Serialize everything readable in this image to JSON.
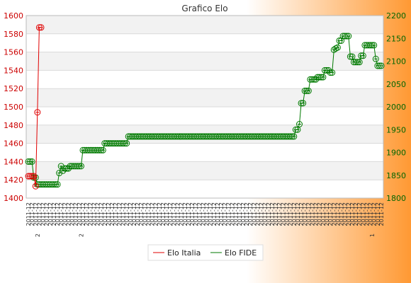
{
  "colors": {
    "bg_left": "#ffffff",
    "bg_right": "#ff9933",
    "band_light": "#f2f2f2",
    "band_white": "#ffffff",
    "grid": "#d9d9d9",
    "italia": "#e00000",
    "fide": "#007a00",
    "left_tick": "#cc0000",
    "right_tick": "#006600",
    "title": "#333333",
    "x_tick": "#333333"
  },
  "chart_data": {
    "type": "line",
    "title": "Grafico Elo",
    "xlabel": "",
    "grid": true,
    "legend_position": "bottom-center",
    "x_tick_text": "2011-12",
    "x_tick_mark_labels": [
      "2",
      "2",
      "1"
    ],
    "y_left": {
      "label": "",
      "range": [
        1400,
        1600
      ],
      "ticks": [
        1400,
        1420,
        1440,
        1460,
        1480,
        1500,
        1520,
        1540,
        1560,
        1580,
        1600
      ]
    },
    "y_right": {
      "label": "",
      "range": [
        1800,
        2200
      ],
      "ticks": [
        1800,
        1850,
        1900,
        1950,
        2000,
        2050,
        2100,
        2150,
        2200
      ]
    },
    "series": [
      {
        "name": "Elo Italia",
        "axis": "left",
        "values": [
          1424,
          1424,
          1424,
          1424,
          1413,
          1494,
          1587,
          1587
        ]
      },
      {
        "name": "Elo FIDE",
        "axis": "right",
        "values": [
          1880,
          1880,
          1880,
          1845,
          1845,
          1830,
          1830,
          1830,
          1830,
          1830,
          1830,
          1830,
          1830,
          1830,
          1830,
          1830,
          1830,
          1855,
          1870,
          1860,
          1865,
          1865,
          1865,
          1870,
          1870,
          1870,
          1870,
          1870,
          1870,
          1870,
          1905,
          1905,
          1905,
          1905,
          1905,
          1905,
          1905,
          1905,
          1905,
          1905,
          1905,
          1905,
          1920,
          1920,
          1920,
          1920,
          1920,
          1920,
          1920,
          1920,
          1920,
          1920,
          1920,
          1920,
          1920,
          1935,
          1935,
          1935,
          1935,
          1935,
          1935,
          1935,
          1935,
          1935,
          1935,
          1935,
          1935,
          1935,
          1935,
          1935,
          1935,
          1935,
          1935,
          1935,
          1935,
          1935,
          1935,
          1935,
          1935,
          1935,
          1935,
          1935,
          1935,
          1935,
          1935,
          1935,
          1935,
          1935,
          1935,
          1935,
          1935,
          1935,
          1935,
          1935,
          1935,
          1935,
          1935,
          1935,
          1935,
          1935,
          1935,
          1935,
          1935,
          1935,
          1935,
          1935,
          1935,
          1935,
          1935,
          1935,
          1935,
          1935,
          1935,
          1935,
          1935,
          1935,
          1935,
          1935,
          1935,
          1935,
          1935,
          1935,
          1935,
          1935,
          1935,
          1935,
          1935,
          1935,
          1935,
          1935,
          1935,
          1935,
          1935,
          1935,
          1935,
          1935,
          1935,
          1935,
          1935,
          1935,
          1935,
          1935,
          1935,
          1935,
          1935,
          1935,
          1935,
          1950,
          1950,
          1962,
          2008,
          2008,
          2035,
          2035,
          2035,
          2060,
          2060,
          2060,
          2060,
          2065,
          2065,
          2065,
          2065,
          2080,
          2080,
          2080,
          2075,
          2075,
          2125,
          2128,
          2130,
          2145,
          2145,
          2155,
          2155,
          2155,
          2155,
          2110,
          2110,
          2098,
          2098,
          2098,
          2098,
          2112,
          2112,
          2135,
          2135,
          2135,
          2135,
          2135,
          2135,
          2105,
          2090,
          2090,
          2090
        ]
      }
    ]
  }
}
